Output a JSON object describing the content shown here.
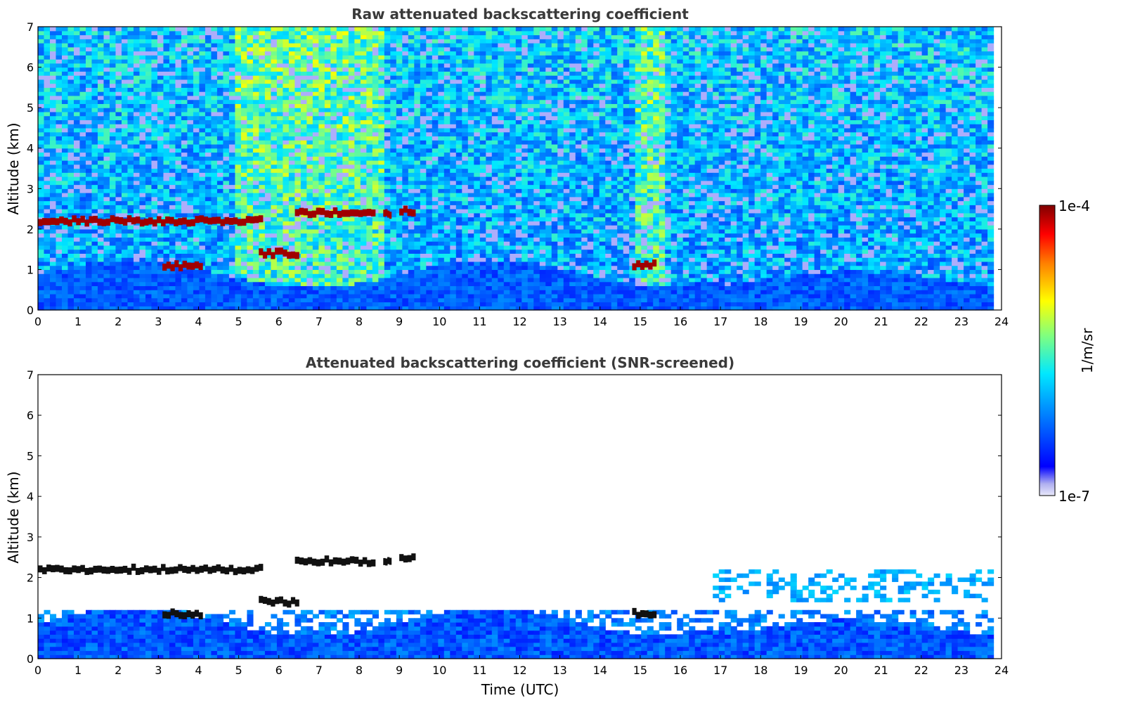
{
  "chart_data": [
    {
      "type": "heatmap",
      "title": "Raw attenuated backscattering coefficient",
      "xlabel": "",
      "ylabel": "Altitude (km)",
      "xlim": [
        0,
        24
      ],
      "ylim": [
        0,
        7
      ],
      "xticks": [
        "0",
        "1",
        "2",
        "3",
        "4",
        "5",
        "6",
        "7",
        "8",
        "9",
        "10",
        "11",
        "12",
        "13",
        "14",
        "15",
        "16",
        "17",
        "18",
        "19",
        "20",
        "21",
        "22",
        "23",
        "24"
      ],
      "yticks": [
        "0",
        "1",
        "2",
        "3",
        "4",
        "5",
        "6",
        "7"
      ],
      "data_end_time": 23.8,
      "features": [
        {
          "kind": "cloud_layer",
          "t_start": 0.0,
          "t_end": 5.6,
          "altitude_km": 2.2,
          "intensity": "1e-4"
        },
        {
          "kind": "cloud_layer",
          "t_start": 6.4,
          "t_end": 8.4,
          "altitude_km": 2.4,
          "intensity": "1e-4"
        },
        {
          "kind": "cloud_layer",
          "t_start": 8.6,
          "t_end": 8.8,
          "altitude_km": 2.4,
          "intensity": "1e-4"
        },
        {
          "kind": "cloud_layer",
          "t_start": 9.0,
          "t_end": 9.4,
          "altitude_km": 2.45,
          "intensity": "1e-4"
        },
        {
          "kind": "cloud_layer",
          "t_start": 5.5,
          "t_end": 6.5,
          "altitude_km": 1.4,
          "intensity": "1e-4"
        },
        {
          "kind": "cloud_layer",
          "t_start": 14.8,
          "t_end": 15.4,
          "altitude_km": 1.12,
          "intensity": "1e-4"
        },
        {
          "kind": "cloud_layer",
          "t_start": 3.1,
          "t_end": 4.1,
          "altitude_km": 1.1,
          "intensity": "1e-4"
        }
      ]
    },
    {
      "type": "heatmap",
      "title": "Attenuated backscattering coefficient (SNR-screened)",
      "xlabel": "Time (UTC)",
      "ylabel": "Altitude (km)",
      "xlim": [
        0,
        24
      ],
      "ylim": [
        0,
        7
      ],
      "xticks": [
        "0",
        "1",
        "2",
        "3",
        "4",
        "5",
        "6",
        "7",
        "8",
        "9",
        "10",
        "11",
        "12",
        "13",
        "14",
        "15",
        "16",
        "17",
        "18",
        "19",
        "20",
        "21",
        "22",
        "23",
        "24"
      ],
      "yticks": [
        "0",
        "1",
        "2",
        "3",
        "4",
        "5",
        "6",
        "7"
      ],
      "data_end_time": 23.8
    }
  ],
  "colorbar": {
    "max_label": "1e-4",
    "min_label": "1e-7",
    "unit_label": "1/m/sr",
    "colormap": "jet",
    "colors": [
      "#e6e6fa",
      "#0000ff",
      "#00a0ff",
      "#00ffff",
      "#7fff7f",
      "#ffff00",
      "#ff7f00",
      "#ff0000",
      "#800000"
    ]
  }
}
